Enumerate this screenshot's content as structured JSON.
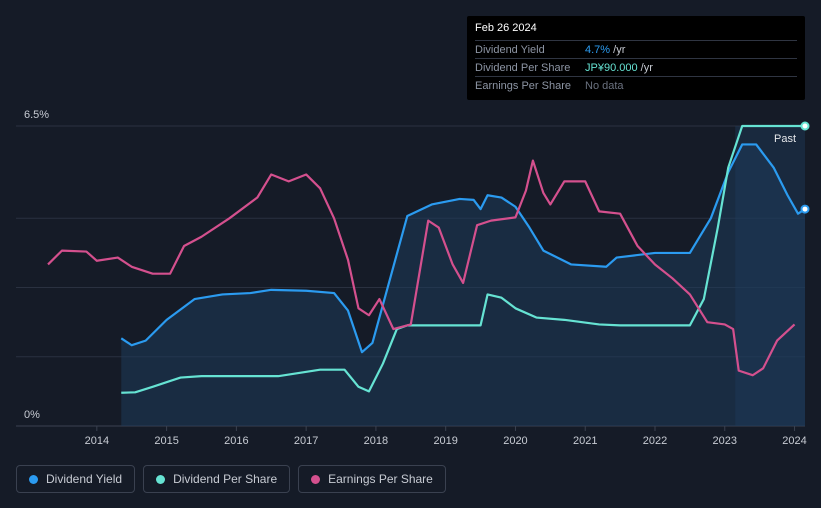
{
  "tooltip": {
    "date": "Feb 26 2024",
    "rows": [
      {
        "label": "Dividend Yield",
        "value": "4.7%",
        "unit": " /yr"
      },
      {
        "label": "Dividend Per Share",
        "value": "JP¥90.000",
        "unit": " /yr"
      },
      {
        "label": "Earnings Per Share",
        "value": "No data",
        "unit": ""
      }
    ]
  },
  "legend": [
    {
      "label": "Dividend Yield",
      "color": "#2b9bf0"
    },
    {
      "label": "Dividend Per Share",
      "color": "#66e3d3"
    },
    {
      "label": "Earnings Per Share",
      "color": "#d4508e"
    }
  ],
  "chart_data": {
    "type": "line",
    "y_top_label": "6.5%",
    "y_bottom_label": "0%",
    "past_label": "Past",
    "ylim": [
      0,
      6.5
    ],
    "xlim": [
      2013.3,
      2024.15
    ],
    "x_ticks": [
      "2014",
      "2015",
      "2016",
      "2017",
      "2018",
      "2019",
      "2020",
      "2021",
      "2022",
      "2023",
      "2024"
    ],
    "series": [
      {
        "name": "Dividend Yield",
        "color": "#2b9bf0",
        "points": [
          [
            2014.35,
            1.9
          ],
          [
            2014.5,
            1.75
          ],
          [
            2014.7,
            1.85
          ],
          [
            2015.0,
            2.3
          ],
          [
            2015.4,
            2.75
          ],
          [
            2015.8,
            2.85
          ],
          [
            2016.2,
            2.88
          ],
          [
            2016.5,
            2.95
          ],
          [
            2017.0,
            2.93
          ],
          [
            2017.4,
            2.88
          ],
          [
            2017.6,
            2.5
          ],
          [
            2017.8,
            1.6
          ],
          [
            2017.95,
            1.8
          ],
          [
            2018.15,
            2.9
          ],
          [
            2018.45,
            4.55
          ],
          [
            2018.8,
            4.8
          ],
          [
            2019.2,
            4.92
          ],
          [
            2019.4,
            4.9
          ],
          [
            2019.5,
            4.7
          ],
          [
            2019.6,
            5.0
          ],
          [
            2019.8,
            4.95
          ],
          [
            2020.0,
            4.75
          ],
          [
            2020.2,
            4.3
          ],
          [
            2020.4,
            3.8
          ],
          [
            2020.8,
            3.5
          ],
          [
            2021.3,
            3.45
          ],
          [
            2021.45,
            3.65
          ],
          [
            2022.0,
            3.75
          ],
          [
            2022.5,
            3.75
          ],
          [
            2022.8,
            4.5
          ],
          [
            2023.05,
            5.5
          ],
          [
            2023.25,
            6.1
          ],
          [
            2023.45,
            6.1
          ],
          [
            2023.7,
            5.6
          ],
          [
            2023.9,
            5.0
          ],
          [
            2024.05,
            4.6
          ],
          [
            2024.15,
            4.7
          ]
        ]
      },
      {
        "name": "Dividend Per Share",
        "color": "#66e3d3",
        "points": [
          [
            2014.35,
            0.72
          ],
          [
            2014.55,
            0.73
          ],
          [
            2014.8,
            0.85
          ],
          [
            2015.2,
            1.05
          ],
          [
            2015.5,
            1.08
          ],
          [
            2016.0,
            1.08
          ],
          [
            2016.6,
            1.08
          ],
          [
            2016.9,
            1.15
          ],
          [
            2017.2,
            1.22
          ],
          [
            2017.55,
            1.22
          ],
          [
            2017.75,
            0.85
          ],
          [
            2017.9,
            0.75
          ],
          [
            2018.1,
            1.35
          ],
          [
            2018.3,
            2.1
          ],
          [
            2018.45,
            2.18
          ],
          [
            2019.0,
            2.18
          ],
          [
            2019.3,
            2.18
          ],
          [
            2019.5,
            2.18
          ],
          [
            2019.6,
            2.85
          ],
          [
            2019.8,
            2.78
          ],
          [
            2020.0,
            2.55
          ],
          [
            2020.3,
            2.35
          ],
          [
            2020.7,
            2.3
          ],
          [
            2021.2,
            2.2
          ],
          [
            2021.5,
            2.18
          ],
          [
            2022.0,
            2.18
          ],
          [
            2022.5,
            2.18
          ],
          [
            2022.7,
            2.75
          ],
          [
            2022.9,
            4.3
          ],
          [
            2023.05,
            5.6
          ],
          [
            2023.25,
            6.5
          ],
          [
            2023.5,
            6.5
          ],
          [
            2024.15,
            6.5
          ]
        ]
      },
      {
        "name": "Earnings Per Share",
        "color": "#d4508e",
        "points": [
          [
            2013.3,
            3.5
          ],
          [
            2013.5,
            3.8
          ],
          [
            2013.85,
            3.78
          ],
          [
            2014.0,
            3.58
          ],
          [
            2014.3,
            3.65
          ],
          [
            2014.5,
            3.45
          ],
          [
            2014.8,
            3.3
          ],
          [
            2015.05,
            3.3
          ],
          [
            2015.25,
            3.9
          ],
          [
            2015.5,
            4.1
          ],
          [
            2015.9,
            4.5
          ],
          [
            2016.3,
            4.95
          ],
          [
            2016.5,
            5.45
          ],
          [
            2016.75,
            5.3
          ],
          [
            2017.0,
            5.45
          ],
          [
            2017.2,
            5.15
          ],
          [
            2017.4,
            4.5
          ],
          [
            2017.6,
            3.6
          ],
          [
            2017.75,
            2.55
          ],
          [
            2017.9,
            2.4
          ],
          [
            2018.05,
            2.75
          ],
          [
            2018.25,
            2.1
          ],
          [
            2018.5,
            2.2
          ],
          [
            2018.75,
            4.45
          ],
          [
            2018.9,
            4.3
          ],
          [
            2019.1,
            3.5
          ],
          [
            2019.25,
            3.1
          ],
          [
            2019.45,
            4.35
          ],
          [
            2019.65,
            4.45
          ],
          [
            2020.0,
            4.52
          ],
          [
            2020.15,
            5.1
          ],
          [
            2020.25,
            5.75
          ],
          [
            2020.4,
            5.05
          ],
          [
            2020.5,
            4.8
          ],
          [
            2020.7,
            5.3
          ],
          [
            2021.0,
            5.3
          ],
          [
            2021.2,
            4.65
          ],
          [
            2021.5,
            4.6
          ],
          [
            2021.75,
            3.9
          ],
          [
            2022.0,
            3.5
          ],
          [
            2022.25,
            3.2
          ],
          [
            2022.5,
            2.85
          ],
          [
            2022.75,
            2.25
          ],
          [
            2023.0,
            2.2
          ],
          [
            2023.12,
            2.1
          ],
          [
            2023.2,
            1.2
          ],
          [
            2023.4,
            1.1
          ],
          [
            2023.55,
            1.25
          ],
          [
            2023.75,
            1.85
          ],
          [
            2024.0,
            2.2
          ]
        ]
      }
    ]
  }
}
